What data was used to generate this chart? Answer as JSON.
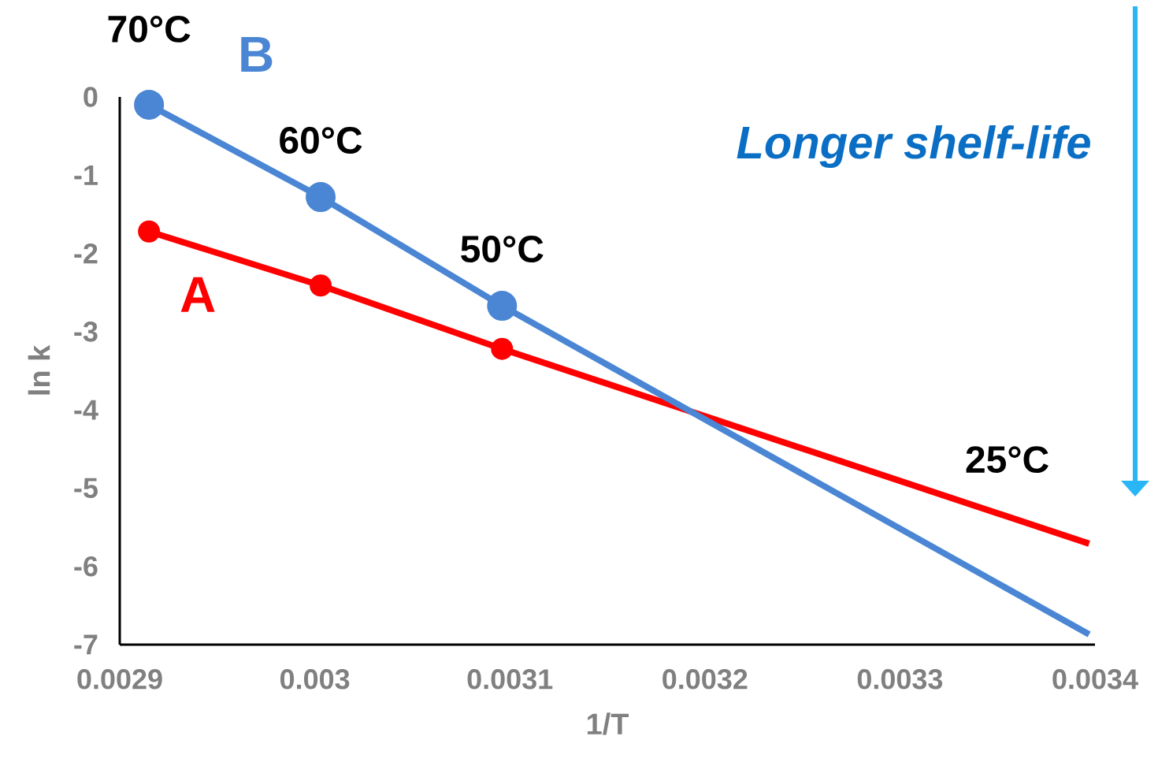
{
  "chart_data": {
    "type": "line",
    "xlabel": "1/T",
    "ylabel": "ln k",
    "xlim": [
      0.0029,
      0.0034
    ],
    "ylim": [
      -7,
      0
    ],
    "xticks": [
      0.0029,
      0.003,
      0.0031,
      0.0032,
      0.0033,
      0.0034
    ],
    "yticks": [
      -7,
      -6,
      -5,
      -4,
      -3,
      -2,
      -1,
      0
    ],
    "marker": "circle",
    "series": [
      {
        "name": "A",
        "color": "#ff0000",
        "x": [
          0.002915,
          0.003003,
          0.003096,
          0.003397
        ],
        "values": [
          -1.72,
          -2.41,
          -3.22,
          -5.71
        ]
      },
      {
        "name": "B",
        "color": "#4a86d4",
        "x": [
          0.002915,
          0.003003,
          0.003096,
          0.003397
        ],
        "values": [
          -0.1,
          -1.28,
          -2.67,
          -6.87
        ]
      }
    ],
    "annotations": [
      {
        "text": "70°C",
        "x": 0.002915,
        "y": -0.1
      },
      {
        "text": "60°C",
        "x": 0.003003,
        "y": -1.28
      },
      {
        "text": "50°C",
        "x": 0.003096,
        "y": -2.67
      },
      {
        "text": "25°C",
        "x": 0.003355,
        "y": -5.36
      },
      "Longer shelf-life"
    ]
  }
}
